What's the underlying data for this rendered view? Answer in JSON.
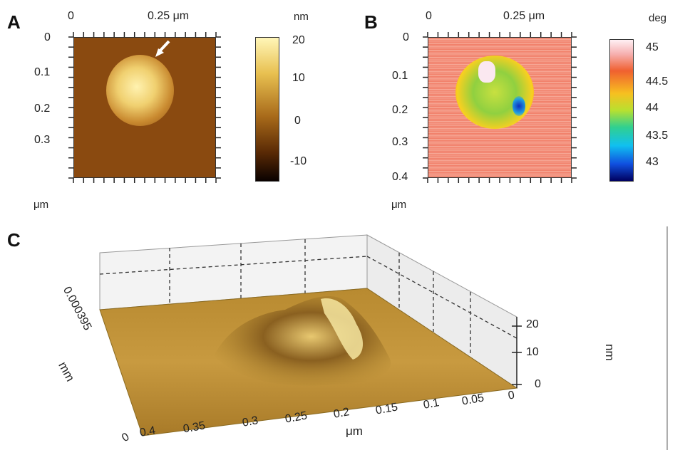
{
  "panels": {
    "a": {
      "letter": "A",
      "x_ticks": [
        "0",
        "0.25 μm"
      ],
      "y_ticks": [
        "0",
        "0.1",
        "0.2",
        "0.3"
      ],
      "unit": "μm",
      "colorbar_unit": "nm",
      "colorbar_ticks": [
        "20",
        "10",
        "0",
        "-10"
      ]
    },
    "b": {
      "letter": "B",
      "x_ticks": [
        "0",
        "0.25 μm"
      ],
      "y_ticks": [
        "0",
        "0.1",
        "0.2",
        "0.3",
        "0.4"
      ],
      "unit": "μm",
      "colorbar_unit": "deg",
      "colorbar_ticks": [
        "45",
        "44.5",
        "44",
        "43.5",
        "43"
      ]
    },
    "c": {
      "letter": "C",
      "left_axis_tick": "0.000395",
      "left_axis_unit": "mm",
      "x_ticks": [
        "0.4",
        "0.35",
        "0.3",
        "0.25",
        "0.2",
        "0.15",
        "0.1",
        "0.05",
        "0"
      ],
      "x_unit": "μm",
      "z_ticks": [
        "20",
        "10",
        "0"
      ],
      "z_unit": "nm",
      "corner_tick": "0"
    }
  },
  "colors": {
    "topo_low": "#1a0a00",
    "topo_mid": "#8a4a10",
    "topo_high": "#f8f0a0",
    "phase_bg": "#f2806a",
    "surface": "#c8a040"
  }
}
